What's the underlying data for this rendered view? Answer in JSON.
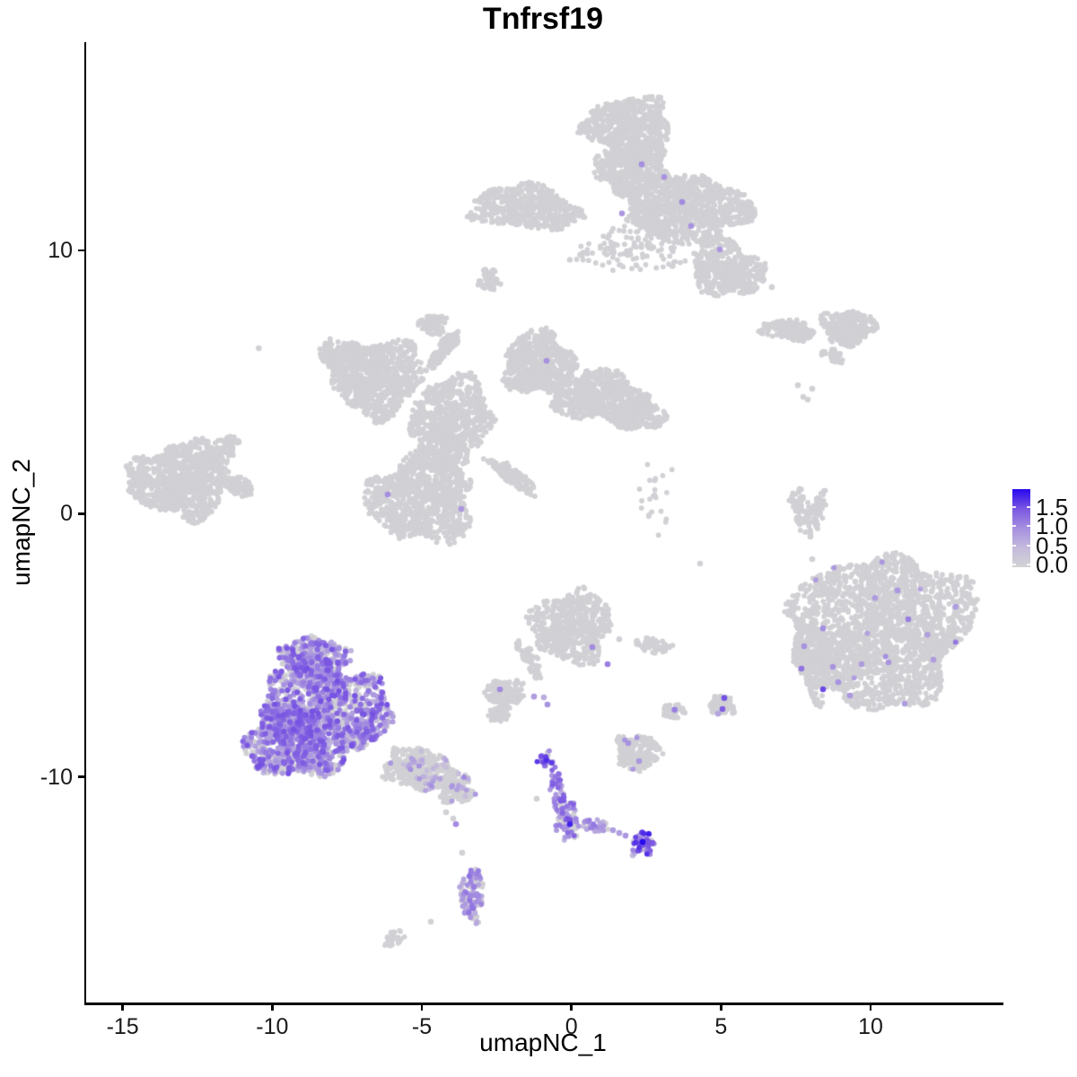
{
  "chart_data": {
    "type": "scatter",
    "title": "Tnfrsf19",
    "xlabel": "umapNC_1",
    "ylabel": "umapNC_2",
    "xlim": [
      -16.25,
      14.35
    ],
    "ylim": [
      -18.6,
      17.9
    ],
    "xticks": [
      -15,
      -10,
      -5,
      0,
      5,
      10
    ],
    "xtick_labels": [
      "-15",
      "-10",
      "-5",
      "0",
      "5",
      "10"
    ],
    "yticks": [
      -10,
      0,
      10
    ],
    "ytick_labels": [
      "-10",
      "0",
      "10"
    ],
    "grid": false,
    "legend": {
      "position": "right",
      "ticks": [
        1.5,
        1.0,
        0.5,
        0.0
      ],
      "tick_labels": [
        "1.5",
        "1.0",
        "0.5",
        "0.0"
      ],
      "domain": [
        -0.07,
        1.97
      ]
    },
    "color_scale": {
      "low": "#D3D3D3",
      "high": "#2607EE",
      "stops": [
        [
          0,
          "#D3D3D3"
        ],
        [
          0.25,
          "#C4BADC"
        ],
        [
          0.5,
          "#A58FE0"
        ],
        [
          0.75,
          "#7B57E2"
        ],
        [
          1,
          "#2607EE"
        ]
      ]
    },
    "point_radius_px": 2.9,
    "clusters": [
      {
        "name": "top-mushroom-cap",
        "shapes": [
          [
            1.9,
            14.73,
            1.44,
            1.09,
            0,
            600
          ],
          [
            2.05,
            13.2,
            1.2,
            1.02,
            0,
            420
          ]
        ]
      },
      {
        "name": "top-band",
        "shapes": [
          [
            3.7,
            11.66,
            2.25,
            1.3,
            -12,
            1100
          ],
          [
            -1.55,
            11.6,
            1.86,
            0.82,
            -5,
            520
          ],
          [
            5.2,
            9.28,
            1.26,
            1.02,
            -25,
            420
          ],
          [
            1.9,
            9.96,
            1.8,
            0.85,
            0,
            120
          ]
        ]
      },
      {
        "name": "small-blob-upper",
        "shapes": [
          [
            -2.75,
            8.87,
            0.36,
            0.41,
            0,
            55
          ]
        ]
      },
      {
        "name": "left-cluster",
        "shapes": [
          [
            -13.1,
            1.27,
            1.65,
            1.43,
            0,
            950
          ],
          [
            -11.81,
            2.26,
            0.84,
            0.41,
            40,
            130
          ],
          [
            -11.18,
            1.06,
            0.6,
            0.34,
            -15,
            110
          ]
        ]
      },
      {
        "name": "central-complex",
        "shapes": [
          [
            -6.5,
            5.19,
            1.56,
            1.43,
            15,
            750
          ],
          [
            -7.7,
            6.01,
            0.75,
            0.61,
            0,
            200
          ],
          [
            -3.95,
            3.82,
            1.35,
            1.36,
            0,
            600
          ],
          [
            -1.1,
            5.7,
            1.2,
            1.19,
            0,
            600
          ],
          [
            1.0,
            4.4,
            1.65,
            0.95,
            -8,
            600
          ],
          [
            2.26,
            3.76,
            0.9,
            0.58,
            0,
            260
          ],
          [
            -4.22,
            6.28,
            0.84,
            0.24,
            55,
            110
          ],
          [
            -4.61,
            7.17,
            0.45,
            0.38,
            0,
            80
          ],
          [
            -5.0,
            0.59,
            1.74,
            1.7,
            0,
            950
          ],
          [
            -1.94,
            1.4,
            1.05,
            0.27,
            -40,
            140
          ],
          [
            -4.4,
            2.29,
            0.9,
            0.68,
            0,
            220
          ]
        ]
      },
      {
        "name": "sparse-trail",
        "shapes": [
          [
            2.8,
            0.76,
            0.6,
            1.9,
            0,
            22
          ]
        ]
      },
      {
        "name": "right-strands",
        "shapes": [
          [
            7.24,
            6.96,
            0.9,
            0.37,
            -8,
            150
          ],
          [
            9.25,
            7.06,
            0.9,
            0.65,
            0,
            260
          ],
          [
            8.74,
            6.01,
            0.39,
            0.24,
            -40,
            40
          ]
        ]
      },
      {
        "name": "right-trail",
        "shapes": [
          [
            7.69,
            0.07,
            0.3,
            0.95,
            12,
            70
          ],
          [
            8.26,
            0.14,
            0.24,
            0.68,
            -10,
            50
          ]
        ]
      },
      {
        "name": "lower-right-cluster",
        "expr": {
          "frac": 0.004,
          "lo": 0.7,
          "hi": 1.2
        },
        "shapes": [
          [
            10.45,
            -4.36,
            2.85,
            2.9,
            0,
            2100
          ],
          [
            8.05,
            -5.48,
            0.55,
            1.55,
            8,
            330
          ]
        ]
      },
      {
        "name": "main-purple-cluster",
        "expr": {
          "frac": 0.62,
          "lo": 0.4,
          "hi": 1.5
        },
        "r": 3.05,
        "shapes": [
          [
            -8.6,
            -5.62,
            1.14,
            0.95,
            0,
            420
          ],
          [
            -8.24,
            -7.7,
            2.16,
            1.87,
            0,
            1150
          ],
          [
            -9.5,
            -8.68,
            1.35,
            1.36,
            0,
            620
          ]
        ]
      },
      {
        "name": "purple-tail",
        "expr": {
          "frac": 0.13,
          "lo": 0.35,
          "hi": 1.05
        },
        "shapes": [
          [
            -5.0,
            -9.74,
            1.35,
            0.75,
            -14,
            380
          ]
        ]
      },
      {
        "name": "tail-tip",
        "expr": {
          "frac": 0.1,
          "lo": 0.3,
          "hi": 0.9
        },
        "shapes": [
          [
            -3.86,
            -10.59,
            0.6,
            0.41,
            0,
            100
          ]
        ]
      },
      {
        "name": "below-tail-blob",
        "expr": {
          "frac": 0.45,
          "lo": 0.5,
          "hi": 1.25
        },
        "shapes": [
          [
            -3.32,
            -14.45,
            0.42,
            1.02,
            0,
            130
          ]
        ]
      },
      {
        "name": "bottom-left-speck",
        "shapes": [
          [
            -5.9,
            -16.08,
            0.42,
            0.27,
            35,
            30
          ]
        ]
      },
      {
        "name": "streak-knot-top",
        "expr": {
          "frac": 0.8,
          "lo": 0.7,
          "hi": 1.75
        },
        "shapes": [
          [
            -0.86,
            -9.3,
            0.28,
            0.31,
            0,
            22
          ]
        ]
      },
      {
        "name": "streak-chain",
        "expr": {
          "frac": 0.7,
          "lo": 0.5,
          "hi": 1.45
        },
        "shapes": [
          [
            -0.47,
            -10.52,
            0.21,
            0.95,
            8,
            60
          ]
        ]
      },
      {
        "name": "streak-junction",
        "expr": {
          "frac": 0.5,
          "lo": 0.5,
          "hi": 1.5
        },
        "shapes": [
          [
            -0.11,
            -11.72,
            0.36,
            0.75,
            0,
            80
          ]
        ]
      },
      {
        "name": "streak-right-chain",
        "expr": {
          "frac": 0.78,
          "lo": 0.4,
          "hi": 1.2
        },
        "shapes": [
          [
            0.76,
            -11.85,
            0.54,
            0.24,
            -5,
            40
          ]
        ]
      },
      {
        "name": "streak-end-blob",
        "expr": {
          "frac": 0.85,
          "lo": 0.6,
          "hi": 1.85
        },
        "shapes": [
          [
            2.41,
            -12.54,
            0.42,
            0.44,
            0,
            60
          ]
        ]
      },
      {
        "name": "streak-side-blob",
        "expr": {
          "frac": 0.01,
          "lo": 0.8,
          "hi": 1.0
        },
        "shapes": [
          [
            2.26,
            -9.06,
            0.78,
            0.68,
            0,
            190
          ]
        ]
      },
      {
        "name": "mid-blob",
        "shapes": [
          [
            0.01,
            -4.29,
            1.35,
            1.36,
            -30,
            560
          ],
          [
            -1.4,
            -5.55,
            0.24,
            0.82,
            30,
            50
          ]
        ]
      },
      {
        "name": "mid-small-blobs",
        "shapes": [
          [
            -2.21,
            -6.84,
            0.66,
            0.55,
            0,
            150
          ],
          [
            -2.42,
            -7.63,
            0.36,
            0.27,
            0,
            45
          ],
          [
            2.74,
            -5.0,
            0.66,
            0.27,
            -10,
            55
          ],
          [
            3.4,
            -7.49,
            0.36,
            0.31,
            0,
            50
          ],
          [
            5.05,
            -7.29,
            0.45,
            0.41,
            0,
            70
          ]
        ]
      }
    ],
    "singles": [
      [
        2.35,
        13.26,
        0.95
      ],
      [
        3.1,
        12.78,
        0.9
      ],
      [
        3.7,
        11.83,
        1.0
      ],
      [
        1.69,
        11.4,
        0.85
      ],
      [
        4.0,
        10.92,
        0.9
      ],
      [
        4.96,
        10.03,
        0.85
      ],
      [
        -0.83,
        5.8,
        0.9
      ],
      [
        -6.14,
        0.72,
        0.95
      ],
      [
        -3.68,
        0.18,
        0.85
      ],
      [
        -10.45,
        6.28,
        0
      ],
      [
        7.57,
        4.87,
        0
      ],
      [
        8.05,
        4.74,
        0
      ],
      [
        7.75,
        4.43,
        0
      ],
      [
        7.9,
        4.33,
        0
      ],
      [
        7.99,
        -0.88,
        0
      ],
      [
        8.05,
        -1.73,
        0
      ],
      [
        8.65,
        -2.31,
        0
      ],
      [
        8.74,
        -2.89,
        0
      ],
      [
        9.49,
        -2.58,
        0
      ],
      [
        4.3,
        -1.9,
        0
      ],
      [
        6.1,
        9.28,
        0
      ],
      [
        6.4,
        8.84,
        0
      ],
      [
        6.7,
        8.6,
        0
      ],
      [
        1.6,
        -4.77,
        0
      ],
      [
        -1.16,
        -10.83,
        0
      ],
      [
        10.9,
        -2.92,
        0.85
      ],
      [
        12.84,
        -3.54,
        0.8
      ],
      [
        11.26,
        -4.01,
        1.1
      ],
      [
        8.41,
        -4.36,
        0.95
      ],
      [
        8.74,
        -5.82,
        0.9
      ],
      [
        9.7,
        -5.72,
        0.8
      ],
      [
        10.6,
        -5.65,
        0.85
      ],
      [
        12.1,
        -5.55,
        0.8
      ],
      [
        8.92,
        -6.4,
        0.9
      ],
      [
        9.31,
        -6.91,
        0.85
      ],
      [
        8.41,
        -6.67,
        1.55
      ],
      [
        11.14,
        -7.22,
        0.8
      ],
      [
        7.78,
        -5.04,
        0.9
      ],
      [
        7.69,
        -5.89,
        1.2
      ],
      [
        10.15,
        -3.2,
        0.8
      ],
      [
        11.9,
        -4.6,
        0.75
      ],
      [
        -0.86,
        -9.25,
        1.6
      ],
      [
        1.39,
        -12.02,
        0.8
      ],
      [
        1.6,
        -12.13,
        0.75
      ],
      [
        1.81,
        -12.23,
        0.85
      ],
      [
        2.38,
        -12.47,
        1.95
      ],
      [
        2.05,
        -12.98,
        0.4
      ],
      [
        1.9,
        -8.72,
        0.9
      ],
      [
        2.26,
        -9.4,
        0.85
      ],
      [
        -0.05,
        -11.79,
        1.8
      ],
      [
        0.7,
        -5.07,
        1.0
      ],
      [
        1.21,
        -5.72,
        1.1
      ],
      [
        -2.39,
        -6.67,
        1.0
      ],
      [
        -1.25,
        -6.95,
        0.8
      ],
      [
        -0.92,
        -6.98,
        0.6
      ],
      [
        -0.8,
        -7.25,
        0.9
      ],
      [
        3.45,
        -7.45,
        1.1
      ],
      [
        5.11,
        -7.0,
        1.5
      ],
      [
        5.05,
        -7.42,
        1.4
      ],
      [
        4.9,
        -7.6,
        0.7
      ],
      [
        -4.19,
        -11.34,
        0
      ],
      [
        -3.95,
        -11.58,
        0
      ],
      [
        -3.86,
        -11.79,
        1.0
      ],
      [
        -3.65,
        -12.88,
        0
      ],
      [
        -4.7,
        -15.5,
        0
      ],
      [
        -3.26,
        -14.17,
        1.1
      ],
      [
        -3.11,
        -14.51,
        1.0
      ],
      [
        -3.29,
        -14.99,
        1.2
      ],
      [
        -3.56,
        -15.16,
        0.9
      ]
    ]
  }
}
